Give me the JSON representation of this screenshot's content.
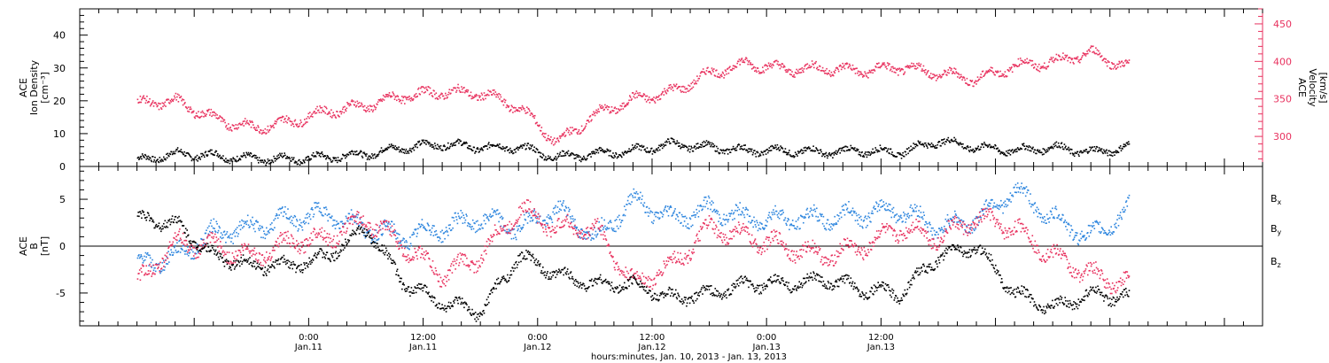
{
  "chart_data": [
    {
      "type": "scatter",
      "panel": "top",
      "ylabel": [
        "ACE",
        "Ion Density",
        "[cm⁻³]"
      ],
      "ylabel_right": [
        "ACE",
        "Velocity",
        "[km/s]"
      ],
      "ylim": [
        0,
        48
      ],
      "ylim_right": [
        260,
        470
      ],
      "yticks": [
        "0",
        "10",
        "20",
        "30",
        "40"
      ],
      "yticks_right": [
        "300",
        "350",
        "400",
        "450"
      ],
      "series": [
        {
          "color": "#000000",
          "axis": "left",
          "x": [
            -18,
            -14,
            -10,
            -6,
            -2,
            2,
            6,
            10,
            14,
            18,
            22,
            26,
            30,
            34,
            38,
            42,
            46,
            50,
            54,
            58,
            62,
            66,
            70,
            74,
            78,
            82,
            86
          ],
          "y": [
            2,
            4,
            3.5,
            2.5,
            2.5,
            3,
            4,
            6,
            7,
            6,
            6,
            3,
            4,
            5,
            7,
            6,
            5,
            5,
            4.5,
            5,
            4.5,
            8,
            6,
            5,
            6,
            4.5,
            6
          ]
        },
        {
          "color": "#e8325f",
          "axis": "right",
          "x": [
            -18,
            -14,
            -10,
            -6,
            -2,
            2,
            6,
            10,
            14,
            18,
            22,
            26,
            30,
            34,
            38,
            42,
            46,
            50,
            54,
            58,
            62,
            66,
            70,
            74,
            78,
            82,
            86
          ],
          "y": [
            345,
            348,
            325,
            312,
            320,
            335,
            342,
            355,
            360,
            358,
            340,
            292,
            330,
            350,
            360,
            385,
            398,
            390,
            392,
            388,
            393,
            385,
            377,
            395,
            400,
            412,
            392
          ]
        }
      ]
    },
    {
      "type": "scatter",
      "panel": "bottom",
      "ylabel": [
        "ACE",
        "B",
        "[nT]"
      ],
      "ylim": [
        -8.5,
        8.5
      ],
      "yticks": [
        "-5",
        "0",
        "5"
      ],
      "legend": [
        "Bx",
        "By",
        "Bz"
      ],
      "series": [
        {
          "name": "Bx",
          "color": "#000000",
          "x": [
            -18,
            -14,
            -10,
            -6,
            -2,
            2,
            6,
            10,
            14,
            18,
            22,
            26,
            30,
            34,
            38,
            42,
            46,
            50,
            54,
            58,
            62,
            66,
            70,
            74,
            78,
            82,
            86
          ],
          "y": [
            3,
            2.5,
            -1,
            -2,
            -2,
            -1,
            2,
            -4,
            -6,
            -7,
            -1,
            -3,
            -4,
            -4,
            -5.5,
            -5,
            -4,
            -4,
            -3.5,
            -4.5,
            -5,
            -1,
            0,
            -5,
            -6.5,
            -5,
            -5.5
          ]
        },
        {
          "name": "By",
          "color": "#2e86de",
          "x": [
            -18,
            -14,
            -10,
            -6,
            -2,
            2,
            6,
            10,
            14,
            18,
            22,
            26,
            30,
            34,
            38,
            42,
            46,
            50,
            54,
            58,
            62,
            66,
            70,
            74,
            78,
            82,
            86
          ],
          "y": [
            -2,
            -1,
            1.5,
            2,
            3,
            3.5,
            2,
            1,
            2,
            3,
            2,
            4,
            1,
            5,
            3,
            4,
            3,
            3,
            3,
            3.5,
            4,
            2,
            3,
            6,
            3,
            1,
            4
          ]
        },
        {
          "name": "Bz",
          "color": "#e8325f",
          "x": [
            -18,
            -14,
            -10,
            -6,
            -2,
            2,
            6,
            10,
            14,
            18,
            22,
            26,
            30,
            34,
            38,
            42,
            46,
            50,
            54,
            58,
            62,
            66,
            70,
            74,
            78,
            82,
            86
          ],
          "y": [
            -4,
            0.5,
            0,
            -1,
            0.5,
            1,
            3,
            0,
            -3,
            -1,
            4,
            2,
            2,
            -4,
            -2,
            2,
            1,
            0,
            -1,
            0,
            2,
            1,
            3,
            2,
            -1,
            -3,
            -4
          ]
        }
      ]
    }
  ],
  "xaxis": {
    "range_hours": [
      -24,
      100
    ],
    "ticks": [
      {
        "hours": 0,
        "top": "0:00",
        "bottom": "Jan.11"
      },
      {
        "hours": 12,
        "top": "12:00",
        "bottom": "Jan.11"
      },
      {
        "hours": 24,
        "top": "0:00",
        "bottom": "Jan.12"
      },
      {
        "hours": 36,
        "top": "12:00",
        "bottom": "Jan.12"
      },
      {
        "hours": 48,
        "top": "0:00",
        "bottom": "Jan.13"
      },
      {
        "hours": 60,
        "top": "12:00",
        "bottom": "Jan.13"
      }
    ],
    "title": "hours:minutes, Jan. 10, 2013 - Jan. 13, 2013"
  }
}
